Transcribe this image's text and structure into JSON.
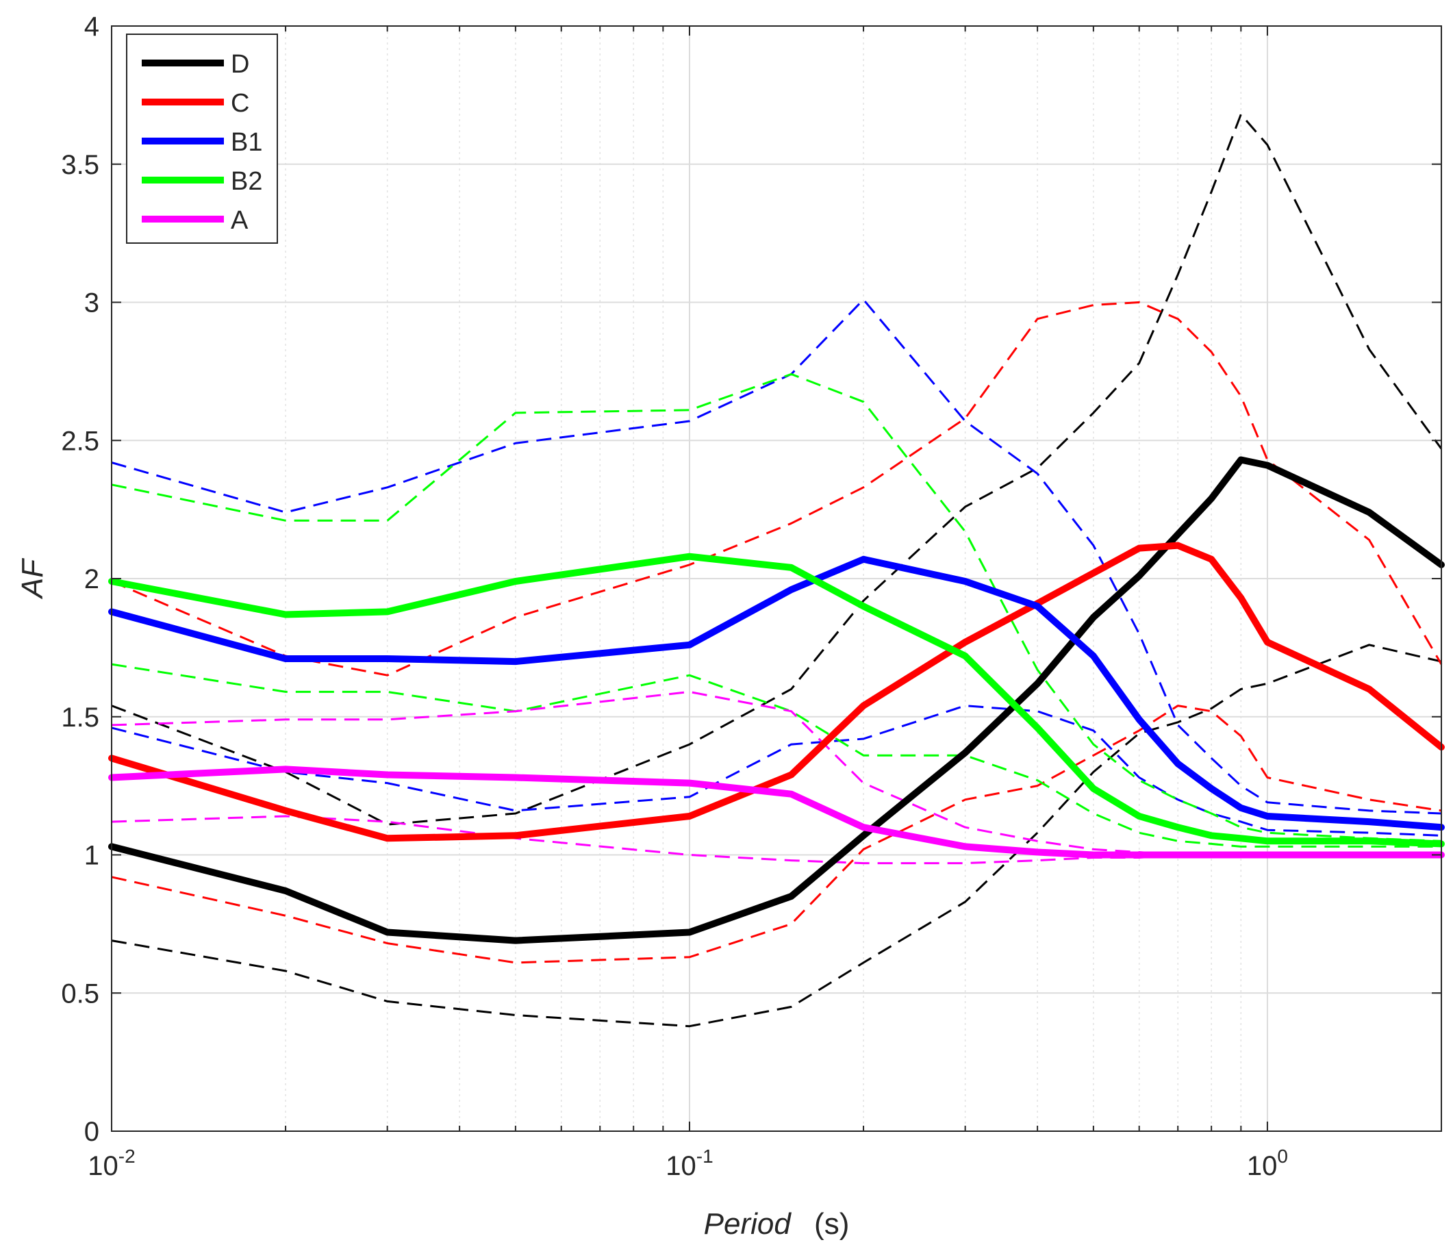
{
  "chart_data": {
    "type": "line",
    "xlabel_main": "Period",
    "xlabel_unit": "(s)",
    "ylabel": "AF",
    "x_scale": "log",
    "xlim": [
      0.01,
      2
    ],
    "ylim": [
      0,
      4
    ],
    "grid": true,
    "legend_position": "top-left",
    "x_ticks": [
      {
        "base": "10",
        "exp": "-2",
        "value": 0.01
      },
      {
        "base": "10",
        "exp": "-1",
        "value": 0.1
      },
      {
        "base": "10",
        "exp": "0",
        "value": 1
      }
    ],
    "y_ticks": [
      {
        "label": "0",
        "value": 0
      },
      {
        "label": "0.5",
        "value": 0.5
      },
      {
        "label": "1",
        "value": 1
      },
      {
        "label": "1.5",
        "value": 1.5
      },
      {
        "label": "2",
        "value": 2
      },
      {
        "label": "2.5",
        "value": 2.5
      },
      {
        "label": "3",
        "value": 3
      },
      {
        "label": "3.5",
        "value": 3.5
      },
      {
        "label": "4",
        "value": 4
      }
    ],
    "x": [
      0.01,
      0.02,
      0.03,
      0.05,
      0.1,
      0.15,
      0.2,
      0.3,
      0.4,
      0.5,
      0.6,
      0.7,
      0.8,
      0.9,
      1.0,
      1.5,
      2.0
    ],
    "series": [
      {
        "name": "D",
        "color": "#000000",
        "style": "solid",
        "values": [
          1.03,
          0.87,
          0.72,
          0.69,
          0.72,
          0.85,
          1.07,
          1.37,
          1.62,
          1.86,
          2.01,
          2.16,
          2.29,
          2.43,
          2.41,
          2.24,
          2.05
        ]
      },
      {
        "name": "C",
        "color": "#ff0000",
        "style": "solid",
        "values": [
          1.35,
          1.16,
          1.06,
          1.07,
          1.14,
          1.29,
          1.54,
          1.77,
          1.91,
          2.02,
          2.11,
          2.12,
          2.07,
          1.93,
          1.77,
          1.6,
          1.39
        ]
      },
      {
        "name": "B1",
        "color": "#0000ff",
        "style": "solid",
        "values": [
          1.88,
          1.71,
          1.71,
          1.7,
          1.76,
          1.96,
          2.07,
          1.99,
          1.9,
          1.72,
          1.49,
          1.33,
          1.24,
          1.17,
          1.14,
          1.12,
          1.1
        ]
      },
      {
        "name": "B2",
        "color": "#00ff00",
        "style": "solid",
        "values": [
          1.99,
          1.87,
          1.88,
          1.99,
          2.08,
          2.04,
          1.9,
          1.72,
          1.46,
          1.24,
          1.14,
          1.1,
          1.07,
          1.06,
          1.05,
          1.05,
          1.04
        ]
      },
      {
        "name": "A",
        "color": "#ff00ff",
        "style": "solid",
        "values": [
          1.28,
          1.31,
          1.29,
          1.28,
          1.26,
          1.22,
          1.1,
          1.03,
          1.01,
          1.0,
          1.0,
          1.0,
          1.0,
          1.0,
          1.0,
          1.0,
          1.0
        ]
      },
      {
        "color": "#000000",
        "style": "dashed",
        "values": [
          1.54,
          1.3,
          1.11,
          1.15,
          1.4,
          1.6,
          1.92,
          2.26,
          2.4,
          2.6,
          2.78,
          3.1,
          3.4,
          3.68,
          3.57,
          2.83,
          2.47
        ]
      },
      {
        "color": "#000000",
        "style": "dashed",
        "values": [
          0.69,
          0.58,
          0.47,
          0.42,
          0.38,
          0.45,
          0.61,
          0.83,
          1.08,
          1.3,
          1.44,
          1.48,
          1.53,
          1.6,
          1.62,
          1.76,
          1.7
        ]
      },
      {
        "color": "#ff0000",
        "style": "dashed",
        "values": [
          1.99,
          1.72,
          1.65,
          1.86,
          2.05,
          2.2,
          2.33,
          2.58,
          2.94,
          2.99,
          3.0,
          2.94,
          2.82,
          2.66,
          2.43,
          2.14,
          1.69
        ]
      },
      {
        "color": "#ff0000",
        "style": "dashed",
        "values": [
          0.92,
          0.78,
          0.68,
          0.61,
          0.63,
          0.75,
          1.02,
          1.2,
          1.25,
          1.36,
          1.45,
          1.54,
          1.52,
          1.43,
          1.28,
          1.2,
          1.16
        ]
      },
      {
        "color": "#0000ff",
        "style": "dashed",
        "values": [
          2.42,
          2.24,
          2.33,
          2.49,
          2.57,
          2.74,
          3.01,
          2.57,
          2.38,
          2.12,
          1.8,
          1.47,
          1.35,
          1.25,
          1.19,
          1.16,
          1.15
        ]
      },
      {
        "color": "#0000ff",
        "style": "dashed",
        "values": [
          1.46,
          1.3,
          1.26,
          1.16,
          1.21,
          1.4,
          1.42,
          1.54,
          1.52,
          1.45,
          1.28,
          1.2,
          1.15,
          1.12,
          1.09,
          1.08,
          1.07
        ]
      },
      {
        "color": "#00ff00",
        "style": "dashed",
        "values": [
          2.34,
          2.21,
          2.21,
          2.6,
          2.61,
          2.74,
          2.64,
          2.17,
          1.67,
          1.4,
          1.27,
          1.2,
          1.15,
          1.1,
          1.08,
          1.06,
          1.05
        ]
      },
      {
        "color": "#00ff00",
        "style": "dashed",
        "values": [
          1.69,
          1.59,
          1.59,
          1.52,
          1.65,
          1.52,
          1.36,
          1.36,
          1.27,
          1.15,
          1.08,
          1.05,
          1.04,
          1.03,
          1.03,
          1.03,
          1.03
        ]
      },
      {
        "color": "#ff00ff",
        "style": "dashed",
        "values": [
          1.47,
          1.49,
          1.49,
          1.52,
          1.59,
          1.52,
          1.26,
          1.1,
          1.05,
          1.02,
          1.01,
          1.0,
          1.0,
          1.0,
          1.0,
          1.0,
          1.0
        ]
      },
      {
        "color": "#ff00ff",
        "style": "dashed",
        "values": [
          1.12,
          1.14,
          1.12,
          1.06,
          1.0,
          0.98,
          0.97,
          0.97,
          0.98,
          0.99,
          0.99,
          1.0,
          1.0,
          1.0,
          1.0,
          1.0,
          1.0
        ]
      }
    ]
  }
}
